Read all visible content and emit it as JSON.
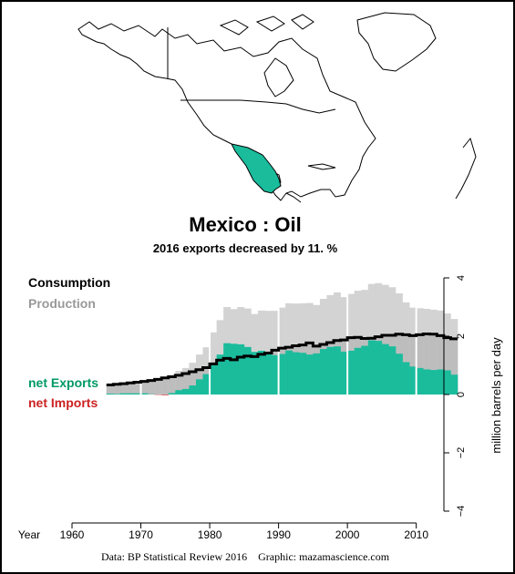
{
  "colors": {
    "consumption": "#000000",
    "production": "#999999",
    "net_exports": "#009966",
    "net_imports": "#CC2222",
    "production_band": "#bdbdbd",
    "production_light": "#d3d3d3",
    "exports_fill": "#1abc9c",
    "highlight_country": "#1abc9c"
  },
  "header": {
    "title": "Mexico :  Oil",
    "subtitle": "2016 exports decreased by 11. %"
  },
  "legend": {
    "consumption": "Consumption",
    "production": "Production",
    "net_exports": "net Exports",
    "net_imports": "net Imports"
  },
  "footer": {
    "credit": "Data: BP Statistical Review 2016    Graphic: mazamascience.com"
  },
  "map": {
    "region": "North America",
    "highlighted_country": "Mexico"
  },
  "chart_data": {
    "type": "area",
    "title": "Mexico :  Oil",
    "subtitle": "2016 exports decreased by 11. %",
    "xlabel": "Year",
    "ylabel": "million barrels per day",
    "xlim": [
      1960,
      2016
    ],
    "ylim": [
      -4,
      4
    ],
    "x_ticks": [
      1960,
      1970,
      1980,
      1990,
      2000,
      2010
    ],
    "y_ticks": [
      4,
      2,
      0,
      -2,
      -4
    ],
    "x": [
      1965,
      1966,
      1967,
      1968,
      1969,
      1970,
      1971,
      1972,
      1973,
      1974,
      1975,
      1976,
      1977,
      1978,
      1979,
      1980,
      1981,
      1982,
      1983,
      1984,
      1985,
      1986,
      1987,
      1988,
      1989,
      1990,
      1991,
      1992,
      1993,
      1994,
      1995,
      1996,
      1997,
      1998,
      1999,
      2000,
      2001,
      2002,
      2003,
      2004,
      2005,
      2006,
      2007,
      2008,
      2009,
      2010,
      2011,
      2012,
      2013,
      2014,
      2015
    ],
    "series": [
      {
        "name": "Production",
        "values": [
          0.36,
          0.37,
          0.41,
          0.44,
          0.46,
          0.49,
          0.49,
          0.51,
          0.55,
          0.66,
          0.81,
          0.91,
          1.09,
          1.37,
          1.62,
          2.13,
          2.55,
          3.0,
          2.93,
          3.0,
          2.95,
          2.76,
          2.88,
          2.87,
          2.87,
          2.98,
          3.13,
          3.12,
          3.13,
          3.14,
          3.07,
          3.28,
          3.41,
          3.5,
          3.34,
          3.45,
          3.56,
          3.59,
          3.79,
          3.82,
          3.76,
          3.68,
          3.47,
          3.16,
          2.98,
          2.96,
          2.94,
          2.91,
          2.88,
          2.78,
          2.59
        ]
      },
      {
        "name": "Consumption",
        "values": [
          0.33,
          0.35,
          0.37,
          0.4,
          0.42,
          0.45,
          0.48,
          0.52,
          0.57,
          0.61,
          0.66,
          0.72,
          0.78,
          0.85,
          0.92,
          1.05,
          1.18,
          1.24,
          1.19,
          1.28,
          1.32,
          1.3,
          1.38,
          1.42,
          1.52,
          1.59,
          1.62,
          1.67,
          1.7,
          1.77,
          1.66,
          1.72,
          1.78,
          1.85,
          1.87,
          1.95,
          1.96,
          1.92,
          1.93,
          1.98,
          2.03,
          2.03,
          2.07,
          2.05,
          2.02,
          2.05,
          2.08,
          2.07,
          2.02,
          1.95,
          1.91
        ]
      },
      {
        "name": "net Exports",
        "values": [
          0.03,
          0.02,
          0.04,
          0.04,
          0.04,
          0.04,
          0.01,
          0,
          0,
          0.05,
          0.15,
          0.19,
          0.31,
          0.52,
          0.7,
          1.08,
          1.37,
          1.76,
          1.74,
          1.72,
          1.63,
          1.46,
          1.5,
          1.45,
          1.35,
          1.39,
          1.51,
          1.45,
          1.43,
          1.37,
          1.41,
          1.56,
          1.63,
          1.65,
          1.47,
          1.5,
          1.6,
          1.67,
          1.86,
          1.84,
          1.73,
          1.65,
          1.4,
          1.11,
          0.96,
          0.91,
          0.86,
          0.84,
          0.86,
          0.83,
          0.68
        ]
      },
      {
        "name": "net Imports",
        "values": [
          0,
          0,
          0,
          0,
          0,
          0,
          0,
          0.01,
          0.02,
          0,
          0,
          0,
          0,
          0,
          0,
          0,
          0,
          0,
          0,
          0,
          0,
          0,
          0,
          0,
          0,
          0,
          0,
          0,
          0,
          0,
          0,
          0,
          0,
          0,
          0,
          0,
          0,
          0,
          0,
          0,
          0,
          0,
          0,
          0,
          0,
          0,
          0,
          0,
          0,
          0,
          0
        ]
      }
    ],
    "grid": false,
    "legend_position": "left"
  }
}
